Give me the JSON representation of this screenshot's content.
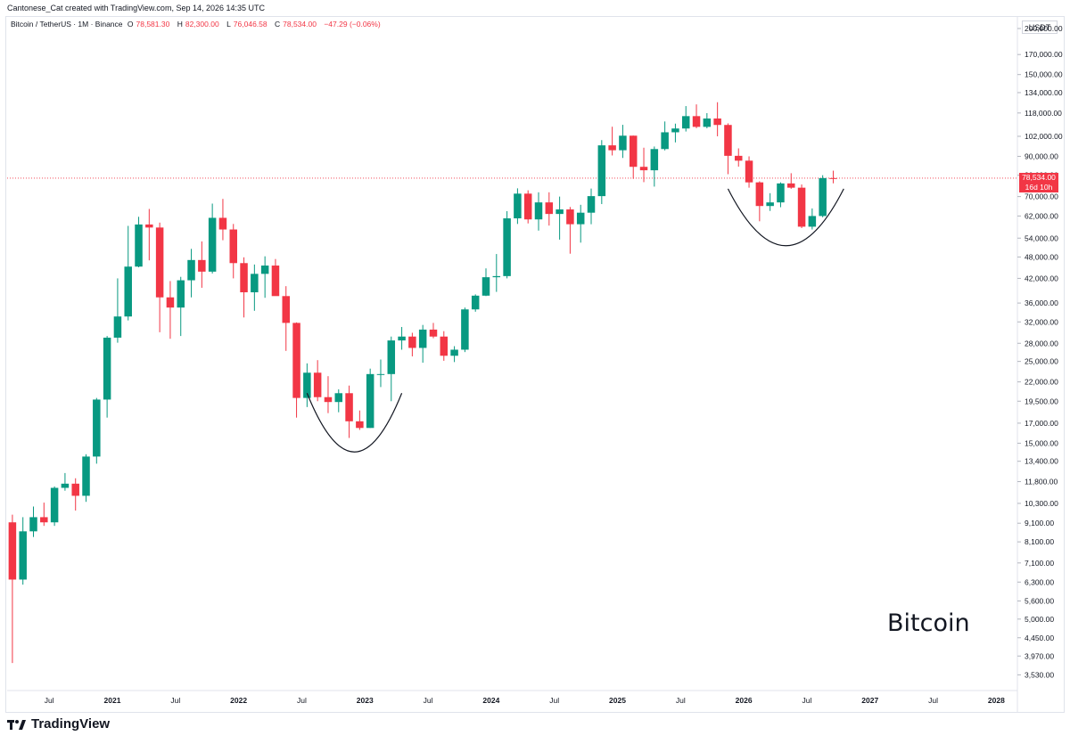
{
  "attribution": "Cantonese_Cat created with TradingView.com, Sep 14, 2026 14:35 UTC",
  "legend": {
    "symbol": "Bitcoin / TetherUS · 1M · Binance",
    "o_label": "O",
    "o_value": "78,581.30",
    "h_label": "H",
    "h_value": "82,300.00",
    "l_label": "L",
    "l_value": "76,046.58",
    "c_label": "C",
    "c_value": "78,534.00",
    "change": "−47.29 (−0.06%)"
  },
  "currency": "USDT",
  "price_tag": {
    "price": "78,534.00",
    "countdown": "16d 10h"
  },
  "watermark": "Bitcoin",
  "brand": "TradingView",
  "colors": {
    "up": "#089981",
    "down": "#f23645",
    "curve": "#131722",
    "grid_text": "#131722",
    "price_line": "#f23645"
  },
  "chart_data": {
    "type": "candlestick",
    "scale": "log",
    "timeframe": "1M",
    "x_start": "2020-03",
    "x_end": "2028-03",
    "ylim": [
      3200,
      215000
    ],
    "y_ticks": [
      {
        "value": 200000,
        "label": "200,000.00"
      },
      {
        "value": 170000,
        "label": "170,000.00"
      },
      {
        "value": 150000,
        "label": "150,000.00"
      },
      {
        "value": 134000,
        "label": "134,000.00"
      },
      {
        "value": 118000,
        "label": "118,000.00"
      },
      {
        "value": 102000,
        "label": "102,000.00"
      },
      {
        "value": 90000,
        "label": "90,000.00"
      },
      {
        "value": 80000,
        "label": "80,000.00"
      },
      {
        "value": 70000,
        "label": "70,000.00"
      },
      {
        "value": 62000,
        "label": "62,000.00"
      },
      {
        "value": 54000,
        "label": "54,000.00"
      },
      {
        "value": 48000,
        "label": "48,000.00"
      },
      {
        "value": 42000,
        "label": "42,000.00"
      },
      {
        "value": 36000,
        "label": "36,000.00"
      },
      {
        "value": 32000,
        "label": "32,000.00"
      },
      {
        "value": 28000,
        "label": "28,000.00"
      },
      {
        "value": 25000,
        "label": "25,000.00"
      },
      {
        "value": 22000,
        "label": "22,000.00"
      },
      {
        "value": 19500,
        "label": "19,500.00"
      },
      {
        "value": 17000,
        "label": "17,000.00"
      },
      {
        "value": 15000,
        "label": "15,000.00"
      },
      {
        "value": 13400,
        "label": "13,400.00"
      },
      {
        "value": 11800,
        "label": "11,800.00"
      },
      {
        "value": 10300,
        "label": "10,300.00"
      },
      {
        "value": 9100,
        "label": "9,100.00"
      },
      {
        "value": 8100,
        "label": "8,100.00"
      },
      {
        "value": 7100,
        "label": "7,100.00"
      },
      {
        "value": 6300,
        "label": "6,300.00"
      },
      {
        "value": 5600,
        "label": "5,600.00"
      },
      {
        "value": 5000,
        "label": "5,000.00"
      },
      {
        "value": 4450,
        "label": "4,450.00"
      },
      {
        "value": 3970,
        "label": "3,970.00"
      },
      {
        "value": 3530,
        "label": "3,530.00"
      }
    ],
    "x_ticks": [
      {
        "date": "2020-07",
        "label": "Jul"
      },
      {
        "date": "2021-01",
        "label": "2021"
      },
      {
        "date": "2021-07",
        "label": "Jul"
      },
      {
        "date": "2022-01",
        "label": "2022"
      },
      {
        "date": "2022-07",
        "label": "Jul"
      },
      {
        "date": "2023-01",
        "label": "2023"
      },
      {
        "date": "2023-07",
        "label": "Jul"
      },
      {
        "date": "2024-01",
        "label": "2024"
      },
      {
        "date": "2024-07",
        "label": "Jul"
      },
      {
        "date": "2025-01",
        "label": "2025"
      },
      {
        "date": "2025-07",
        "label": "Jul"
      },
      {
        "date": "2026-01",
        "label": "2026"
      },
      {
        "date": "2026-07",
        "label": "Jul"
      },
      {
        "date": "2027-01",
        "label": "2027"
      },
      {
        "date": "2027-07",
        "label": "Jul"
      },
      {
        "date": "2028-01",
        "label": "2028"
      }
    ],
    "candles": [
      {
        "date": "2020-03",
        "o": 9150,
        "h": 9600,
        "l": 3800,
        "c": 6400
      },
      {
        "date": "2020-04",
        "o": 6400,
        "h": 9450,
        "l": 6200,
        "c": 8650
      },
      {
        "date": "2020-05",
        "o": 8650,
        "h": 10100,
        "l": 8350,
        "c": 9450
      },
      {
        "date": "2020-06",
        "o": 9450,
        "h": 10350,
        "l": 8950,
        "c": 9150
      },
      {
        "date": "2020-07",
        "o": 9150,
        "h": 11450,
        "l": 8950,
        "c": 11350
      },
      {
        "date": "2020-08",
        "o": 11350,
        "h": 12450,
        "l": 11150,
        "c": 11650
      },
      {
        "date": "2020-09",
        "o": 11650,
        "h": 12050,
        "l": 9850,
        "c": 10800
      },
      {
        "date": "2020-10",
        "o": 10800,
        "h": 14000,
        "l": 10400,
        "c": 13800
      },
      {
        "date": "2020-11",
        "o": 13800,
        "h": 19900,
        "l": 13200,
        "c": 19700
      },
      {
        "date": "2020-12",
        "o": 19700,
        "h": 29300,
        "l": 17600,
        "c": 29000
      },
      {
        "date": "2021-01",
        "o": 29000,
        "h": 42000,
        "l": 28100,
        "c": 33100
      },
      {
        "date": "2021-02",
        "o": 33100,
        "h": 58300,
        "l": 32300,
        "c": 45200
      },
      {
        "date": "2021-03",
        "o": 45200,
        "h": 61700,
        "l": 45000,
        "c": 58800
      },
      {
        "date": "2021-04",
        "o": 58800,
        "h": 64800,
        "l": 47000,
        "c": 57700
      },
      {
        "date": "2021-05",
        "o": 57700,
        "h": 59500,
        "l": 30000,
        "c": 37300
      },
      {
        "date": "2021-06",
        "o": 37300,
        "h": 41300,
        "l": 28800,
        "c": 35000
      },
      {
        "date": "2021-07",
        "o": 35000,
        "h": 42400,
        "l": 29300,
        "c": 41500
      },
      {
        "date": "2021-08",
        "o": 41500,
        "h": 50500,
        "l": 37300,
        "c": 47100
      },
      {
        "date": "2021-09",
        "o": 47100,
        "h": 52900,
        "l": 39600,
        "c": 43800
      },
      {
        "date": "2021-10",
        "o": 43800,
        "h": 67000,
        "l": 43300,
        "c": 61300
      },
      {
        "date": "2021-11",
        "o": 61300,
        "h": 69000,
        "l": 53300,
        "c": 57000
      },
      {
        "date": "2021-12",
        "o": 57000,
        "h": 59000,
        "l": 42000,
        "c": 46200
      },
      {
        "date": "2022-01",
        "o": 46200,
        "h": 47900,
        "l": 32900,
        "c": 38500
      },
      {
        "date": "2022-02",
        "o": 38500,
        "h": 45800,
        "l": 34300,
        "c": 43200
      },
      {
        "date": "2022-03",
        "o": 43200,
        "h": 48200,
        "l": 37200,
        "c": 45500
      },
      {
        "date": "2022-04",
        "o": 45500,
        "h": 47400,
        "l": 37700,
        "c": 37600
      },
      {
        "date": "2022-05",
        "o": 37600,
        "h": 40000,
        "l": 26700,
        "c": 31800
      },
      {
        "date": "2022-06",
        "o": 31800,
        "h": 31900,
        "l": 17600,
        "c": 19900
      },
      {
        "date": "2022-07",
        "o": 19900,
        "h": 24700,
        "l": 18800,
        "c": 23300
      },
      {
        "date": "2022-08",
        "o": 23300,
        "h": 25200,
        "l": 19500,
        "c": 20000
      },
      {
        "date": "2022-09",
        "o": 20000,
        "h": 22800,
        "l": 18100,
        "c": 19400
      },
      {
        "date": "2022-10",
        "o": 19400,
        "h": 21000,
        "l": 18200,
        "c": 20500
      },
      {
        "date": "2022-11",
        "o": 20500,
        "h": 21500,
        "l": 15500,
        "c": 17200
      },
      {
        "date": "2022-12",
        "o": 17200,
        "h": 18400,
        "l": 16300,
        "c": 16500
      },
      {
        "date": "2023-01",
        "o": 16500,
        "h": 23900,
        "l": 16500,
        "c": 23100
      },
      {
        "date": "2023-02",
        "o": 23100,
        "h": 25300,
        "l": 21300,
        "c": 23100
      },
      {
        "date": "2023-03",
        "o": 23100,
        "h": 29200,
        "l": 19500,
        "c": 28500
      },
      {
        "date": "2023-04",
        "o": 28500,
        "h": 31000,
        "l": 26900,
        "c": 29200
      },
      {
        "date": "2023-05",
        "o": 29200,
        "h": 29900,
        "l": 25800,
        "c": 27200
      },
      {
        "date": "2023-06",
        "o": 27200,
        "h": 31400,
        "l": 24800,
        "c": 30500
      },
      {
        "date": "2023-07",
        "o": 30500,
        "h": 31800,
        "l": 28900,
        "c": 29200
      },
      {
        "date": "2023-08",
        "o": 29200,
        "h": 30200,
        "l": 25100,
        "c": 25900
      },
      {
        "date": "2023-09",
        "o": 25900,
        "h": 27500,
        "l": 24900,
        "c": 26900
      },
      {
        "date": "2023-10",
        "o": 26900,
        "h": 35000,
        "l": 26500,
        "c": 34600
      },
      {
        "date": "2023-11",
        "o": 34600,
        "h": 38000,
        "l": 34100,
        "c": 37700
      },
      {
        "date": "2023-12",
        "o": 37700,
        "h": 44700,
        "l": 37600,
        "c": 42300
      },
      {
        "date": "2024-01",
        "o": 42300,
        "h": 48900,
        "l": 38600,
        "c": 42600
      },
      {
        "date": "2024-02",
        "o": 42600,
        "h": 63900,
        "l": 42000,
        "c": 61100
      },
      {
        "date": "2024-03",
        "o": 61100,
        "h": 73700,
        "l": 59000,
        "c": 71300
      },
      {
        "date": "2024-04",
        "o": 71300,
        "h": 72800,
        "l": 59200,
        "c": 60700
      },
      {
        "date": "2024-05",
        "o": 60700,
        "h": 71900,
        "l": 56600,
        "c": 67500
      },
      {
        "date": "2024-06",
        "o": 67500,
        "h": 71900,
        "l": 58400,
        "c": 62800
      },
      {
        "date": "2024-07",
        "o": 62800,
        "h": 70000,
        "l": 53500,
        "c": 64600
      },
      {
        "date": "2024-08",
        "o": 64600,
        "h": 65600,
        "l": 49000,
        "c": 58900
      },
      {
        "date": "2024-09",
        "o": 58900,
        "h": 66500,
        "l": 52500,
        "c": 63300
      },
      {
        "date": "2024-10",
        "o": 63300,
        "h": 73600,
        "l": 58900,
        "c": 70200
      },
      {
        "date": "2024-11",
        "o": 70200,
        "h": 99600,
        "l": 66800,
        "c": 96400
      },
      {
        "date": "2024-12",
        "o": 96400,
        "h": 108300,
        "l": 90500,
        "c": 93500
      },
      {
        "date": "2025-01",
        "o": 93500,
        "h": 109600,
        "l": 89100,
        "c": 102400
      },
      {
        "date": "2025-02",
        "o": 102400,
        "h": 102500,
        "l": 78200,
        "c": 84300
      },
      {
        "date": "2025-03",
        "o": 84300,
        "h": 95000,
        "l": 76600,
        "c": 82500
      },
      {
        "date": "2025-04",
        "o": 82500,
        "h": 95700,
        "l": 74500,
        "c": 94200
      },
      {
        "date": "2025-05",
        "o": 94200,
        "h": 111900,
        "l": 93400,
        "c": 104600
      },
      {
        "date": "2025-06",
        "o": 104600,
        "h": 110400,
        "l": 98200,
        "c": 107100
      },
      {
        "date": "2025-07",
        "o": 107100,
        "h": 123200,
        "l": 105100,
        "c": 115700
      },
      {
        "date": "2025-08",
        "o": 115700,
        "h": 124500,
        "l": 107300,
        "c": 108200
      },
      {
        "date": "2025-09",
        "o": 108200,
        "h": 117900,
        "l": 107200,
        "c": 114000
      },
      {
        "date": "2025-10",
        "o": 114000,
        "h": 126200,
        "l": 102000,
        "c": 109500
      },
      {
        "date": "2025-11",
        "o": 109500,
        "h": 110600,
        "l": 80500,
        "c": 90300
      },
      {
        "date": "2025-12",
        "o": 90300,
        "h": 94600,
        "l": 84400,
        "c": 87600
      },
      {
        "date": "2026-01",
        "o": 87600,
        "h": 90000,
        "l": 74000,
        "c": 76500
      },
      {
        "date": "2026-02",
        "o": 76500,
        "h": 77000,
        "l": 60000,
        "c": 66000
      },
      {
        "date": "2026-03",
        "o": 66000,
        "h": 71500,
        "l": 64000,
        "c": 67500
      },
      {
        "date": "2026-04",
        "o": 67500,
        "h": 76500,
        "l": 65500,
        "c": 76000
      },
      {
        "date": "2026-05",
        "o": 76000,
        "h": 81000,
        "l": 73500,
        "c": 74000
      },
      {
        "date": "2026-06",
        "o": 74000,
        "h": 75500,
        "l": 57500,
        "c": 58000
      },
      {
        "date": "2026-07",
        "o": 58000,
        "h": 65000,
        "l": 57000,
        "c": 62000
      },
      {
        "date": "2026-08",
        "o": 62000,
        "h": 80000,
        "l": 61500,
        "c": 78581
      },
      {
        "date": "2026-09",
        "o": 78581,
        "h": 82300,
        "l": 76047,
        "c": 78534
      }
    ],
    "annotations": [
      {
        "type": "curve",
        "from_date": "2022-07",
        "to_date": "2023-04",
        "top_price": 20500,
        "bottom_price": 14200
      },
      {
        "type": "curve",
        "from_date": "2025-11",
        "to_date": "2026-10",
        "top_price": 73500,
        "bottom_price": 51500
      }
    ]
  }
}
